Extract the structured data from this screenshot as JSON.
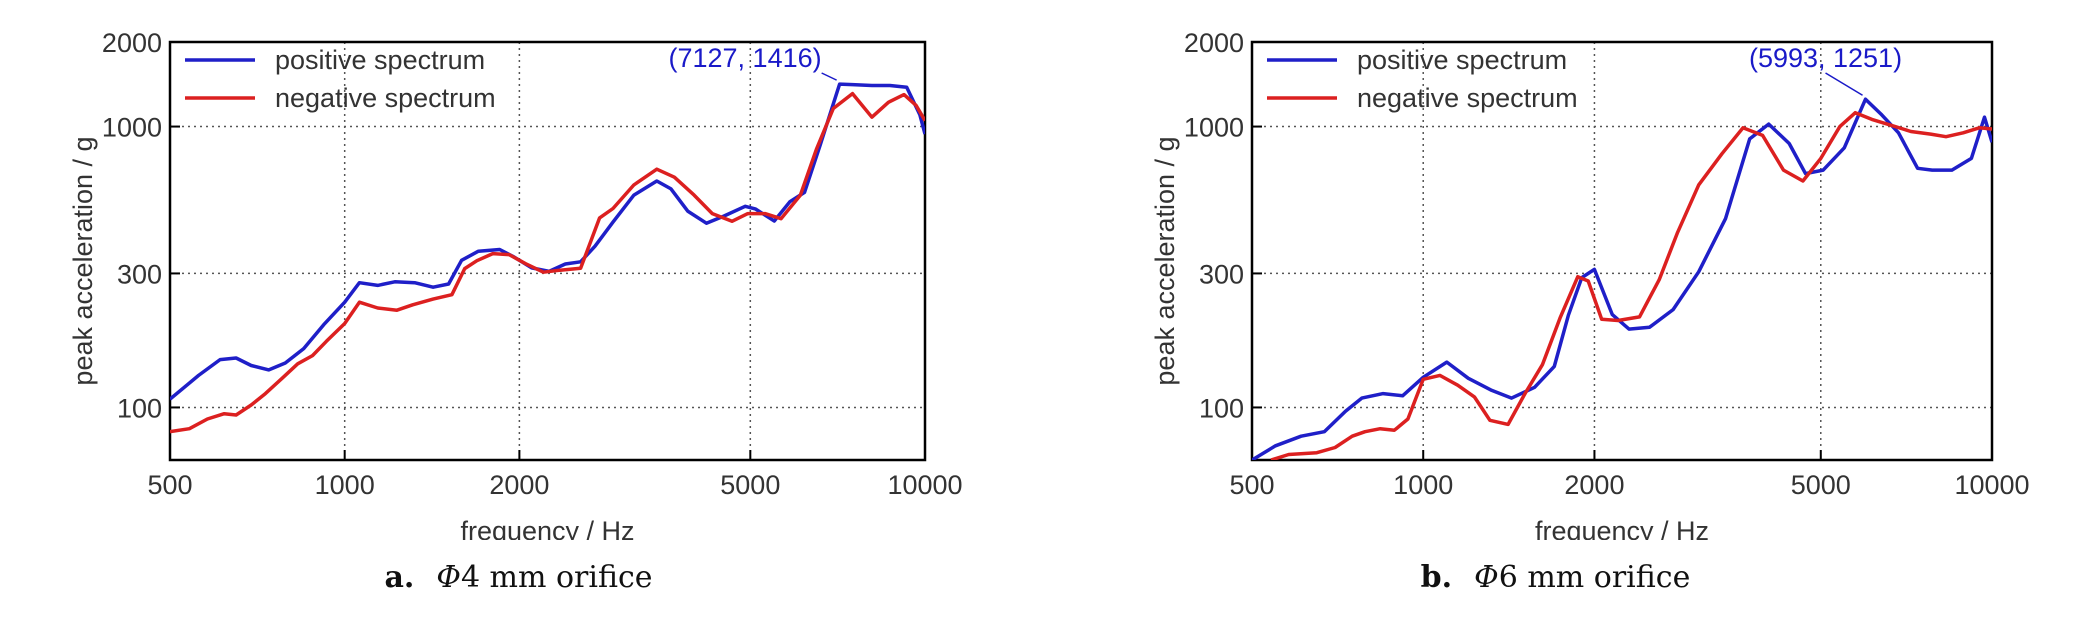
{
  "chart_data": [
    {
      "type": "line",
      "caption": {
        "letter": "a.",
        "phi": "Φ",
        "text": "4 mm orifice"
      },
      "xlabel": "frequency / Hz",
      "ylabel": "peak acceleration / g",
      "xscale": "log",
      "yscale": "log",
      "xlim": [
        500,
        10000
      ],
      "ylim": [
        65,
        2000
      ],
      "xticks": [
        500,
        1000,
        2000,
        5000,
        10000
      ],
      "xtick_labels": [
        "500",
        "1000",
        "2000",
        "5000",
        "10000"
      ],
      "yticks": [
        100,
        300,
        1000,
        2000
      ],
      "ytick_labels": [
        "100",
        "300",
        "1000",
        "2000"
      ],
      "grid": "dotted",
      "legend_position": "top-left",
      "annotation": {
        "text": "(7127, 1416)",
        "x": 7127,
        "y": 1416
      },
      "series": [
        {
          "name": "positive spectrum",
          "color": "#1f1fc8",
          "x": [
            500,
            560,
            610,
            650,
            690,
            740,
            790,
            850,
            920,
            1000,
            1060,
            1140,
            1220,
            1320,
            1420,
            1510,
            1590,
            1700,
            1850,
            1950,
            2100,
            2250,
            2400,
            2550,
            2700,
            2900,
            3150,
            3450,
            3650,
            3900,
            4200,
            4500,
            4900,
            5100,
            5500,
            5850,
            6200,
            6600,
            7127,
            7500,
            8100,
            8700,
            9300,
            9800,
            10000
          ],
          "values": [
            107,
            130,
            148,
            150,
            141,
            136,
            144,
            162,
            197,
            237,
            278,
            272,
            280,
            278,
            268,
            275,
            334,
            360,
            365,
            345,
            314,
            305,
            324,
            330,
            375,
            457,
            570,
            640,
            600,
            500,
            453,
            480,
            520,
            509,
            461,
            540,
            583,
            862,
            1416,
            1410,
            1400,
            1400,
            1380,
            1100,
            940
          ]
        },
        {
          "name": "negative spectrum",
          "color": "#dc2020",
          "x": [
            500,
            540,
            580,
            620,
            650,
            690,
            730,
            780,
            830,
            880,
            930,
            1000,
            1060,
            1140,
            1230,
            1310,
            1420,
            1530,
            1610,
            1690,
            1800,
            1920,
            2050,
            2200,
            2350,
            2550,
            2750,
            2900,
            3150,
            3450,
            3700,
            4000,
            4300,
            4650,
            4950,
            5300,
            5650,
            6100,
            6500,
            6950,
            7500,
            8100,
            8650,
            9200,
            9650,
            10000
          ],
          "values": [
            82,
            84,
            91,
            95,
            94,
            102,
            112,
            127,
            143,
            153,
            172,
            199,
            237,
            226,
            222,
            232,
            243,
            252,
            312,
            333,
            353,
            350,
            325,
            303,
            308,
            313,
            473,
            511,
            620,
            705,
            660,
            570,
            490,
            460,
            490,
            490,
            470,
            570,
            830,
            1160,
            1310,
            1080,
            1220,
            1300,
            1190,
            1050
          ]
        }
      ]
    },
    {
      "type": "line",
      "caption": {
        "letter": "b.",
        "phi": "Φ",
        "text": "6 mm orifice"
      },
      "xlabel": "frequency / Hz",
      "ylabel": "peak acceleration / g",
      "xscale": "log",
      "yscale": "log",
      "xlim": [
        500,
        10000
      ],
      "ylim": [
        65,
        2000
      ],
      "xticks": [
        500,
        1000,
        2000,
        5000,
        10000
      ],
      "xtick_labels": [
        "500",
        "1000",
        "2000",
        "5000",
        "10000"
      ],
      "yticks": [
        100,
        300,
        1000,
        2000
      ],
      "ytick_labels": [
        "100",
        "300",
        "1000",
        "2000"
      ],
      "grid": "dotted",
      "legend_position": "top-left",
      "annotation": {
        "text": "(5993, 1251)",
        "x": 5993,
        "y": 1251
      },
      "series": [
        {
          "name": "positive spectrum",
          "color": "#1f1fc8",
          "x": [
            500,
            550,
            610,
            670,
            730,
            780,
            850,
            920,
            1000,
            1100,
            1200,
            1320,
            1430,
            1570,
            1700,
            1800,
            1900,
            2000,
            2150,
            2300,
            2500,
            2750,
            3050,
            3400,
            3750,
            4050,
            4400,
            4700,
            5050,
            5500,
            5993,
            6400,
            6850,
            7400,
            7850,
            8500,
            9200,
            9700,
            10000
          ],
          "values": [
            65,
            73,
            79,
            82,
            97,
            108,
            112,
            110,
            128,
            145,
            127,
            115,
            108,
            118,
            140,
            213,
            290,
            310,
            214,
            190,
            193,
            223,
            304,
            470,
            904,
            1020,
            870,
            680,
            700,
            840,
            1251,
            1100,
            950,
            710,
            700,
            700,
            770,
            1080,
            880
          ]
        },
        {
          "name": "negative spectrum",
          "color": "#dc2020",
          "x": [
            540,
            580,
            650,
            700,
            750,
            790,
            840,
            890,
            940,
            1000,
            1070,
            1150,
            1230,
            1310,
            1410,
            1510,
            1620,
            1740,
            1870,
            1950,
            2060,
            2200,
            2400,
            2600,
            2800,
            3050,
            3350,
            3650,
            3950,
            4300,
            4650,
            5000,
            5400,
            5750,
            6150,
            6650,
            7200,
            7800,
            8300,
            8900,
            9500,
            10000
          ],
          "values": [
            65,
            68,
            69,
            72,
            79,
            82,
            84,
            83,
            91,
            126,
            130,
            120,
            109,
            90,
            87,
            112,
            142,
            208,
            292,
            282,
            206,
            204,
            210,
            285,
            420,
            620,
            800,
            990,
            930,
            700,
            640,
            770,
            1000,
            1120,
            1060,
            1010,
            960,
            940,
            920,
            950,
            990,
            980
          ]
        }
      ]
    }
  ]
}
